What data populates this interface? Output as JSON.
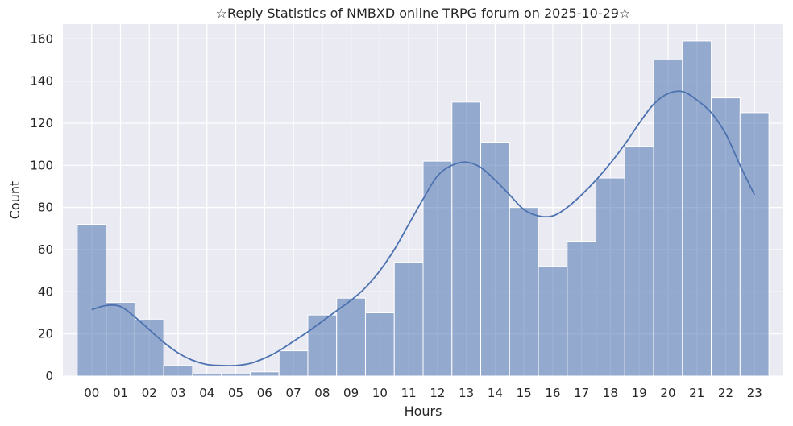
{
  "chart_data": {
    "type": "bar",
    "title": "☆Reply Statistics of NMBXD online TRPG forum on 2025-10-29☆",
    "xlabel": "Hours",
    "ylabel": "Count",
    "categories": [
      "00",
      "01",
      "02",
      "03",
      "04",
      "05",
      "06",
      "07",
      "08",
      "09",
      "10",
      "11",
      "12",
      "13",
      "14",
      "15",
      "16",
      "17",
      "18",
      "19",
      "20",
      "21",
      "22",
      "23"
    ],
    "values": [
      72,
      35,
      27,
      5,
      1,
      1,
      2,
      12,
      29,
      37,
      30,
      54,
      102,
      130,
      111,
      80,
      52,
      64,
      94,
      109,
      150,
      159,
      132,
      125
    ],
    "ylim": [
      0,
      167
    ],
    "yticks": [
      0,
      20,
      40,
      60,
      80,
      100,
      120,
      140,
      160
    ],
    "grid": true,
    "kde_curve": {
      "x": [
        0,
        0.5,
        1,
        1.5,
        2,
        2.5,
        3,
        3.5,
        4,
        4.5,
        5,
        5.5,
        6,
        6.5,
        7,
        7.5,
        8,
        8.5,
        9,
        9.5,
        10,
        10.5,
        11,
        11.5,
        12,
        12.5,
        13,
        13.5,
        14,
        14.5,
        15,
        15.5,
        16,
        16.5,
        17,
        17.5,
        18,
        18.5,
        19,
        19.5,
        20,
        20.5,
        21,
        21.5,
        22,
        22.5,
        23
      ],
      "y": [
        31.5,
        33.5,
        33,
        28,
        22,
        16,
        11,
        7.5,
        5.5,
        5,
        5,
        6,
        8.5,
        12,
        16.5,
        21,
        26,
        31,
        36,
        42,
        50,
        60,
        72,
        84,
        95,
        100,
        101.5,
        99,
        93,
        86,
        79,
        76,
        76,
        80,
        86,
        93,
        101,
        110,
        120,
        129,
        134,
        135,
        131,
        125,
        115,
        100,
        86
      ]
    },
    "colors": {
      "bar_fill": "#4c72b0",
      "bar_fill_opacity": 0.55,
      "bar_edge": "#ffffff",
      "kde_line": "#4c72b0",
      "plot_background": "#eaeaf2",
      "grid": "#ffffff",
      "text": "#262626"
    }
  }
}
